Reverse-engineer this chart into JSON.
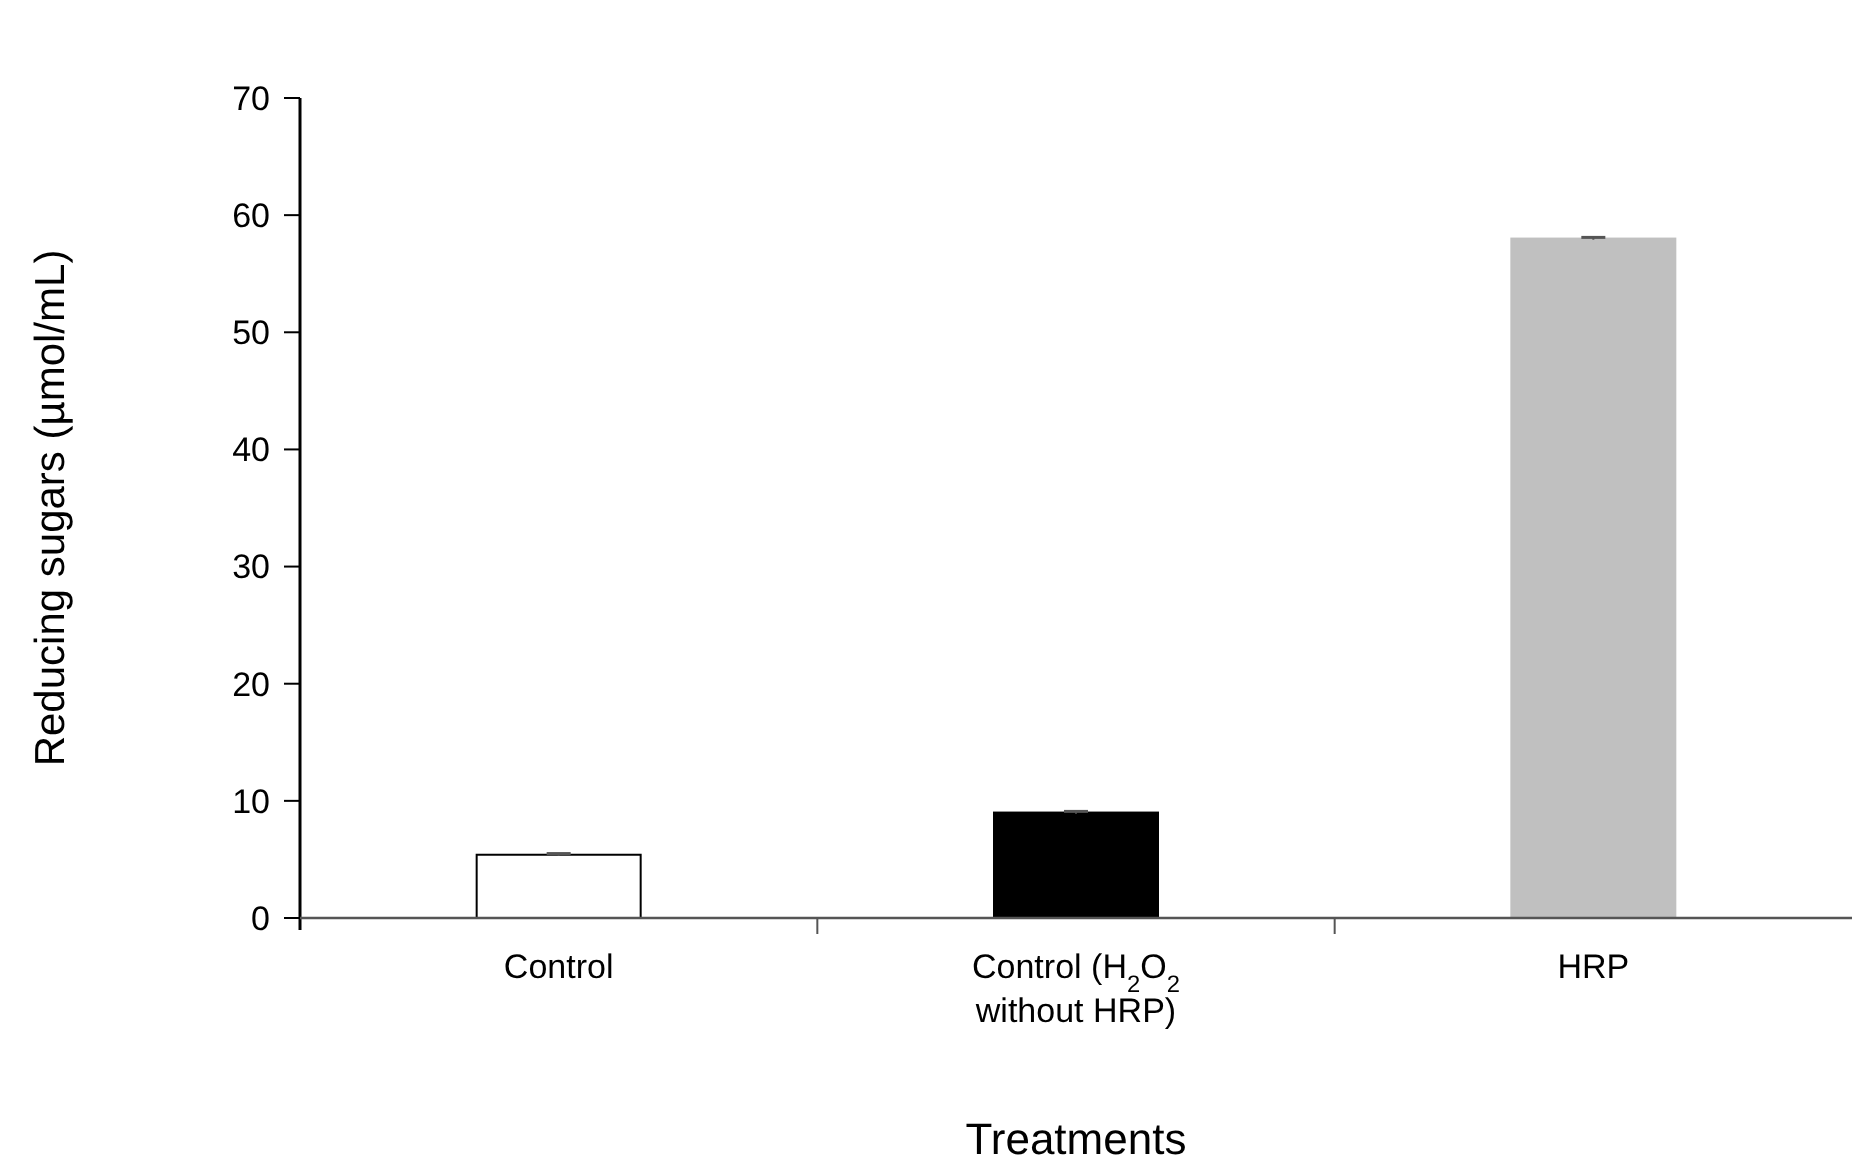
{
  "chart_data": {
    "type": "bar",
    "xlabel": "Treatments",
    "ylabel": "Reducing sugars (µmol/mL)",
    "categories": [
      "Control",
      "Control (H$_{2}$O$_{2}$ without HRP)",
      "HRP"
    ],
    "values": [
      5.4,
      9.0,
      58.0
    ],
    "colors": [
      "#ffffff",
      "#000000",
      "#c0c0c0"
    ],
    "errors": [
      0.1,
      0.1,
      0.1
    ],
    "ylim": [
      0,
      70
    ],
    "yticks": [
      0,
      10,
      20,
      30,
      40,
      50,
      60,
      70
    ]
  }
}
